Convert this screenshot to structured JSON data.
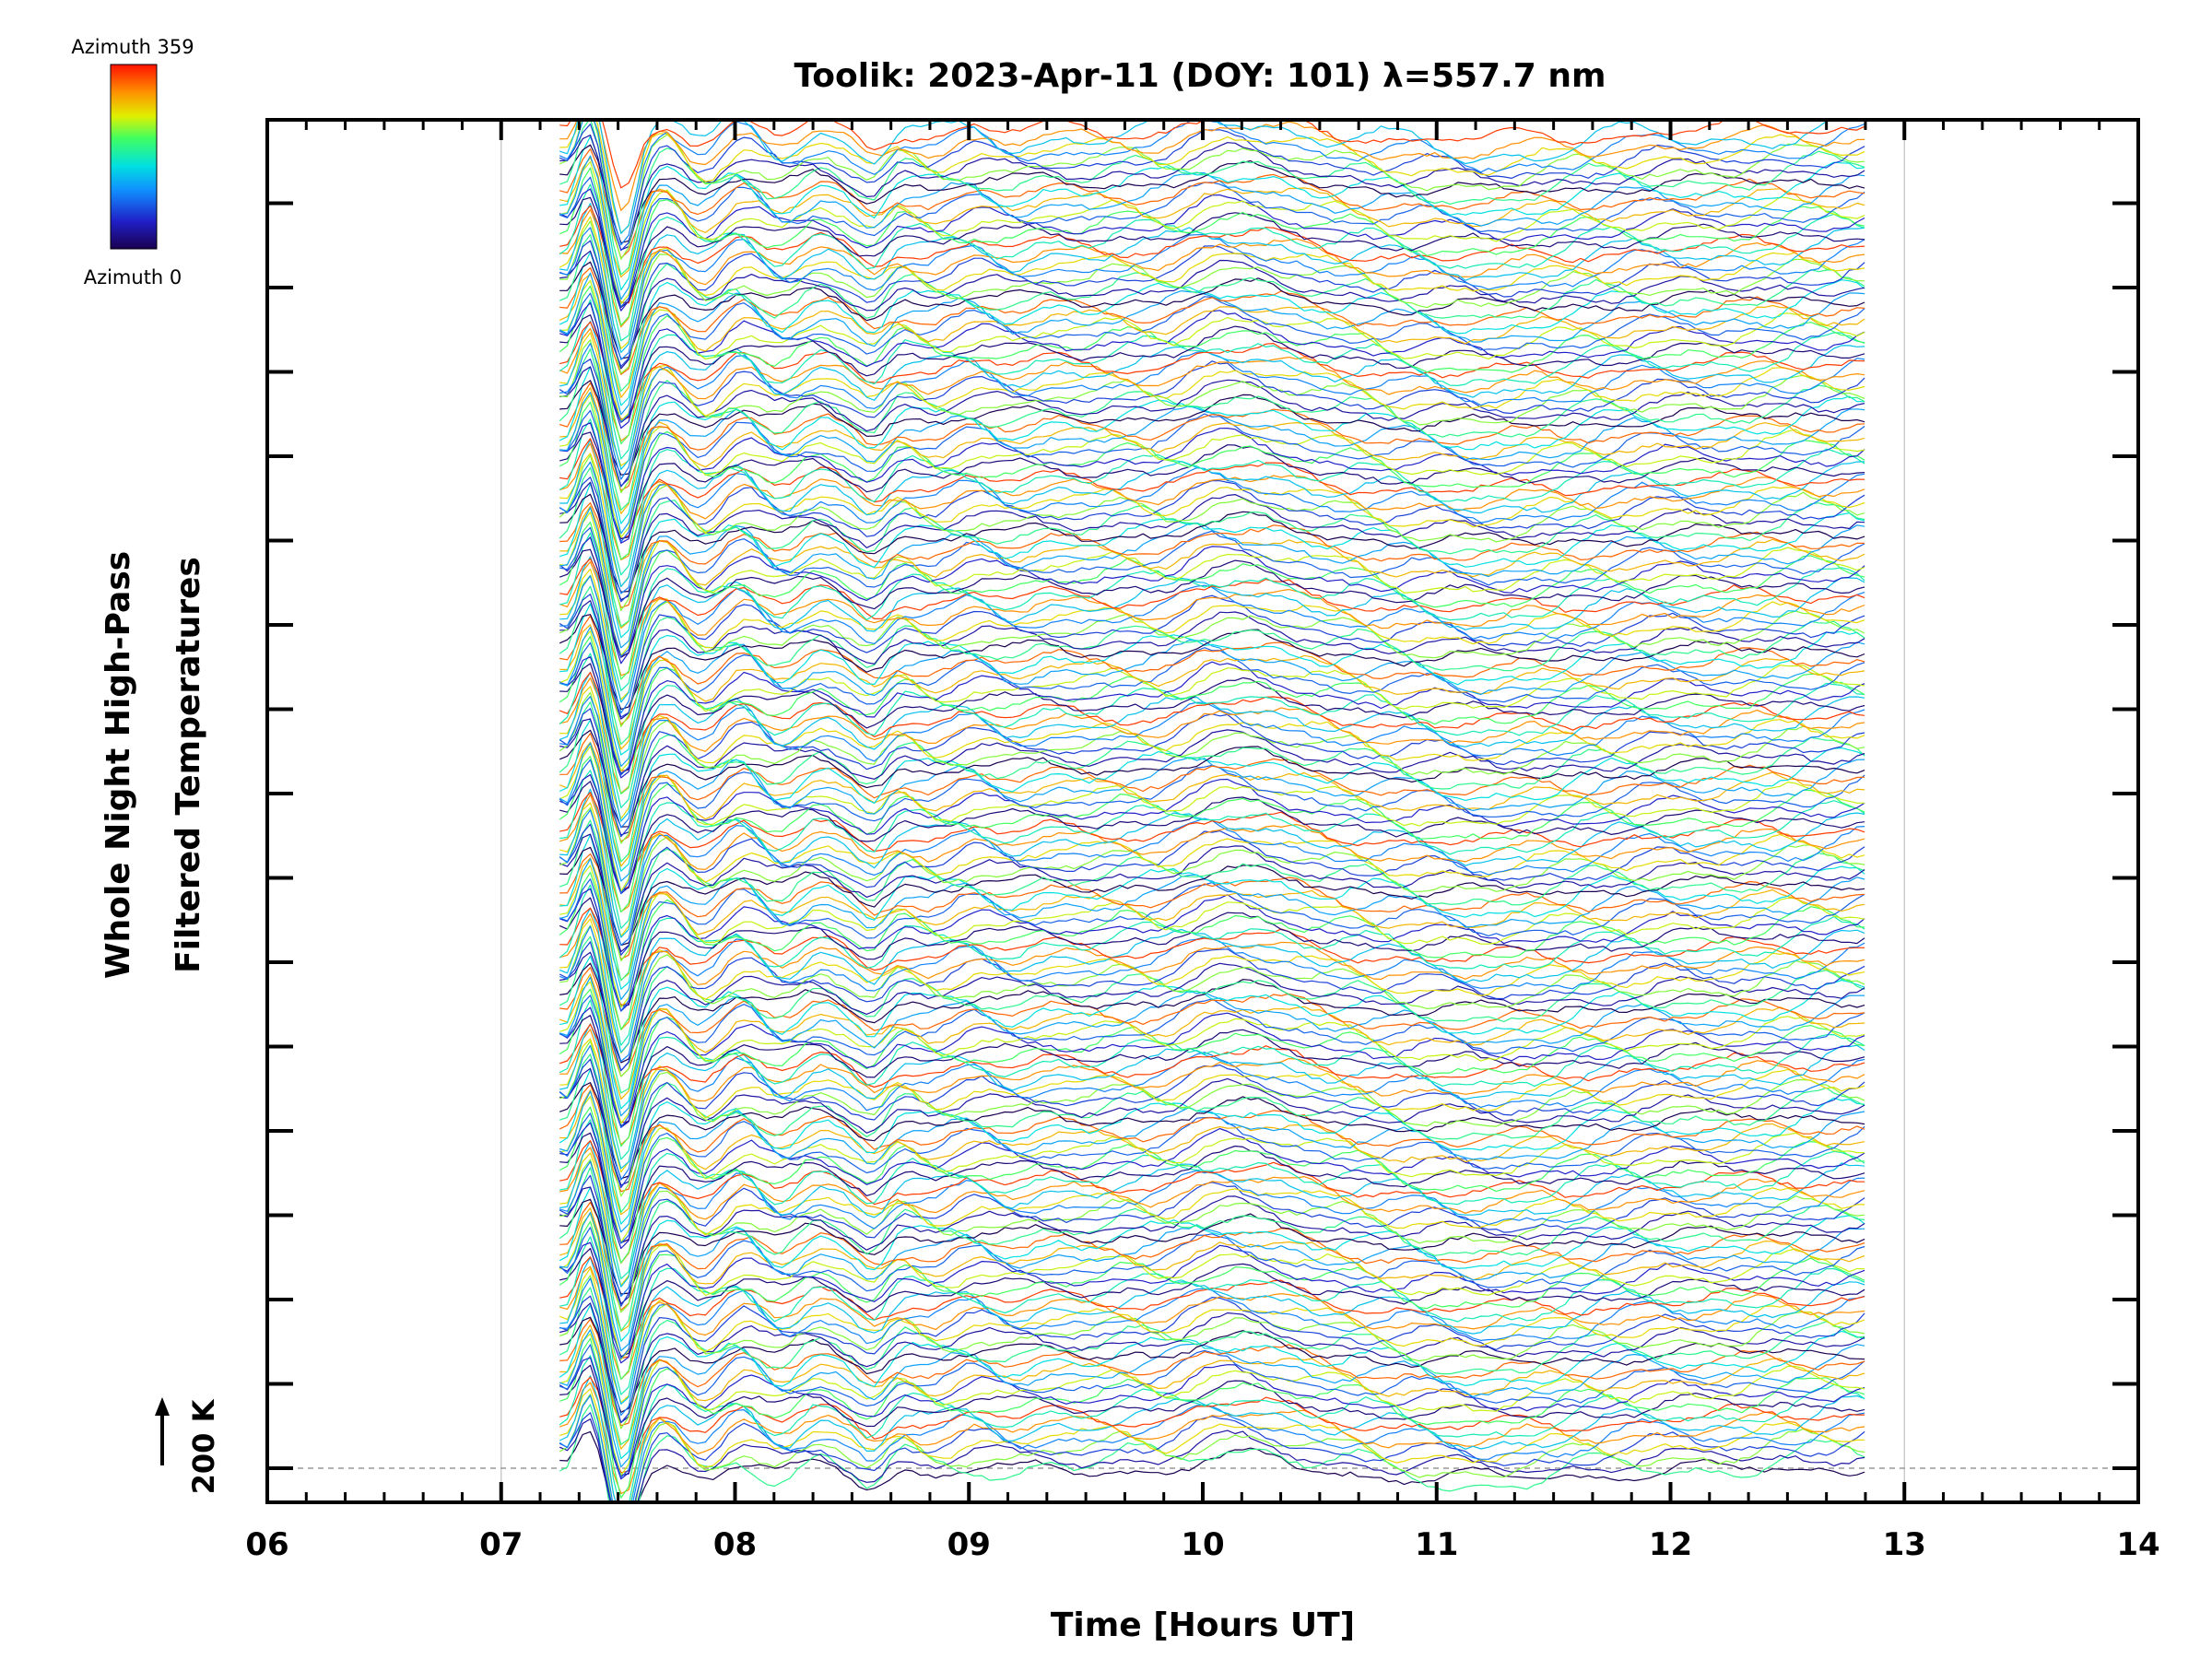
{
  "chart_data": {
    "type": "line",
    "title": "Toolik: 2023-Apr-11 (DOY: 101) λ=557.7 nm",
    "xlabel": "Time [Hours UT]",
    "ylabel": [
      "Whole Night High-Pass",
      "Filtered Temperatures"
    ],
    "x_tick_labels": [
      "06",
      "07",
      "08",
      "09",
      "10",
      "11",
      "12",
      "13",
      "14"
    ],
    "xlim": [
      6,
      14
    ],
    "data_time_range": [
      7.25,
      12.83
    ],
    "scale_bar": "200 K",
    "colorbar": {
      "top_label": "Azimuth 359",
      "bottom_label": "Azimuth 0",
      "colormap": "rainbow"
    },
    "series_description": "stacked high-pass filtered temperature time series, one per azimuth, color-coded by azimuth",
    "grid": "vertical lines at 07 and 13",
    "colors": {
      "axis": "#000000",
      "grid": "#cccccc"
    }
  }
}
